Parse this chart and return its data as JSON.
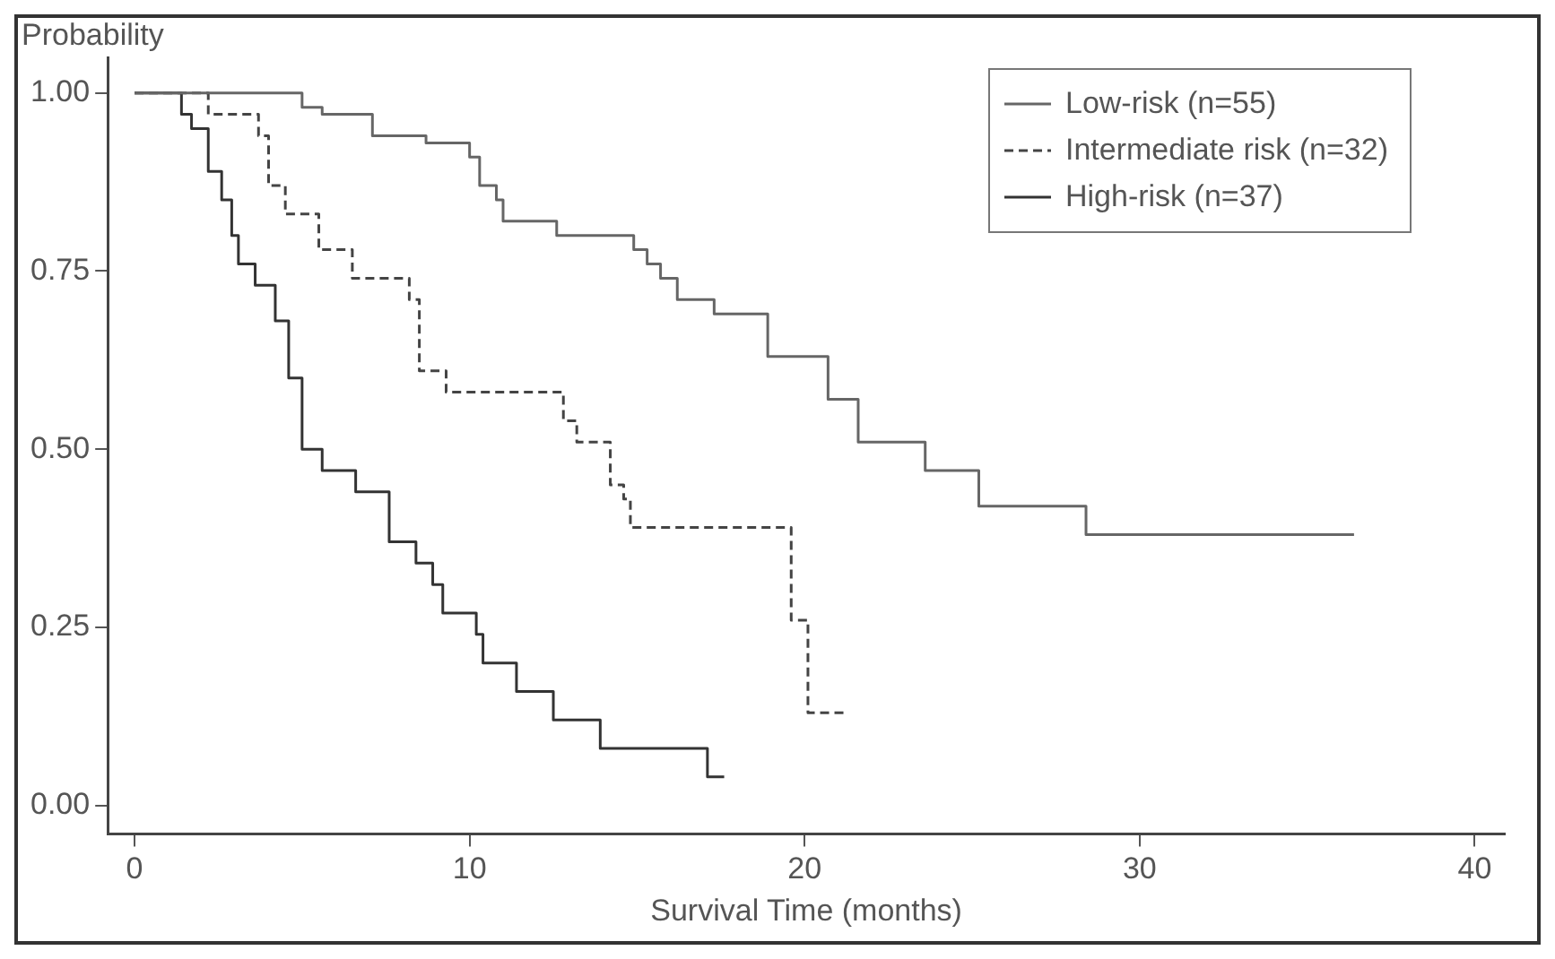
{
  "chart_data": {
    "type": "step",
    "xlabel": "Survival Time (months)",
    "ylabel": "Probability",
    "xlim": [
      -0.8,
      40.9
    ],
    "ylim": [
      -0.04,
      1.05
    ],
    "xticks": [
      0,
      10,
      20,
      30,
      40
    ],
    "yticks": [
      {
        "value": 0,
        "label": "0.00"
      },
      {
        "value": 0.25,
        "label": "0.25"
      },
      {
        "value": 0.5,
        "label": "0.50"
      },
      {
        "value": 0.75,
        "label": "0.75"
      },
      {
        "value": 1,
        "label": "1.00"
      }
    ],
    "grid": false,
    "legend": "top right",
    "marker": "none",
    "series": [
      {
        "name": "Low-risk (n=55)",
        "color": "#666666",
        "line_style": "solid",
        "x": [
          0,
          5.0,
          5.6,
          7.1,
          8.7,
          10.0,
          10.3,
          10.8,
          11.0,
          12.6,
          14.9,
          15.3,
          15.7,
          16.2,
          17.3,
          18.9,
          20.7,
          21.6,
          23.6,
          25.2,
          28.4,
          36.4
        ],
        "values": [
          1.0,
          0.98,
          0.97,
          0.94,
          0.93,
          0.91,
          0.87,
          0.85,
          0.82,
          0.8,
          0.78,
          0.76,
          0.74,
          0.71,
          0.69,
          0.63,
          0.57,
          0.51,
          0.47,
          0.42,
          0.38,
          0.38
        ]
      },
      {
        "name": "Intermediate risk (n=32)",
        "color": "#444444",
        "line_style": "dashed",
        "x": [
          0,
          2.2,
          3.7,
          4.0,
          4.5,
          5.5,
          6.5,
          8.2,
          8.5,
          9.3,
          12.8,
          13.2,
          14.2,
          14.6,
          14.8,
          19.6,
          20.1,
          21.2
        ],
        "values": [
          1.0,
          0.97,
          0.94,
          0.87,
          0.83,
          0.78,
          0.74,
          0.71,
          0.61,
          0.58,
          0.54,
          0.51,
          0.45,
          0.43,
          0.39,
          0.26,
          0.13,
          0.13
        ]
      },
      {
        "name": "High-risk (n=37)",
        "color": "#333333",
        "line_style": "solid",
        "x": [
          0,
          1.4,
          1.7,
          2.2,
          2.6,
          2.9,
          3.1,
          3.6,
          4.2,
          4.6,
          5.0,
          5.6,
          6.6,
          7.6,
          8.4,
          8.9,
          9.2,
          10.2,
          10.4,
          11.4,
          12.5,
          13.9,
          17.1,
          17.6
        ],
        "values": [
          1.0,
          0.97,
          0.95,
          0.89,
          0.85,
          0.8,
          0.76,
          0.73,
          0.68,
          0.6,
          0.5,
          0.47,
          0.44,
          0.37,
          0.34,
          0.31,
          0.27,
          0.24,
          0.2,
          0.16,
          0.12,
          0.08,
          0.04,
          0.04
        ]
      }
    ]
  }
}
